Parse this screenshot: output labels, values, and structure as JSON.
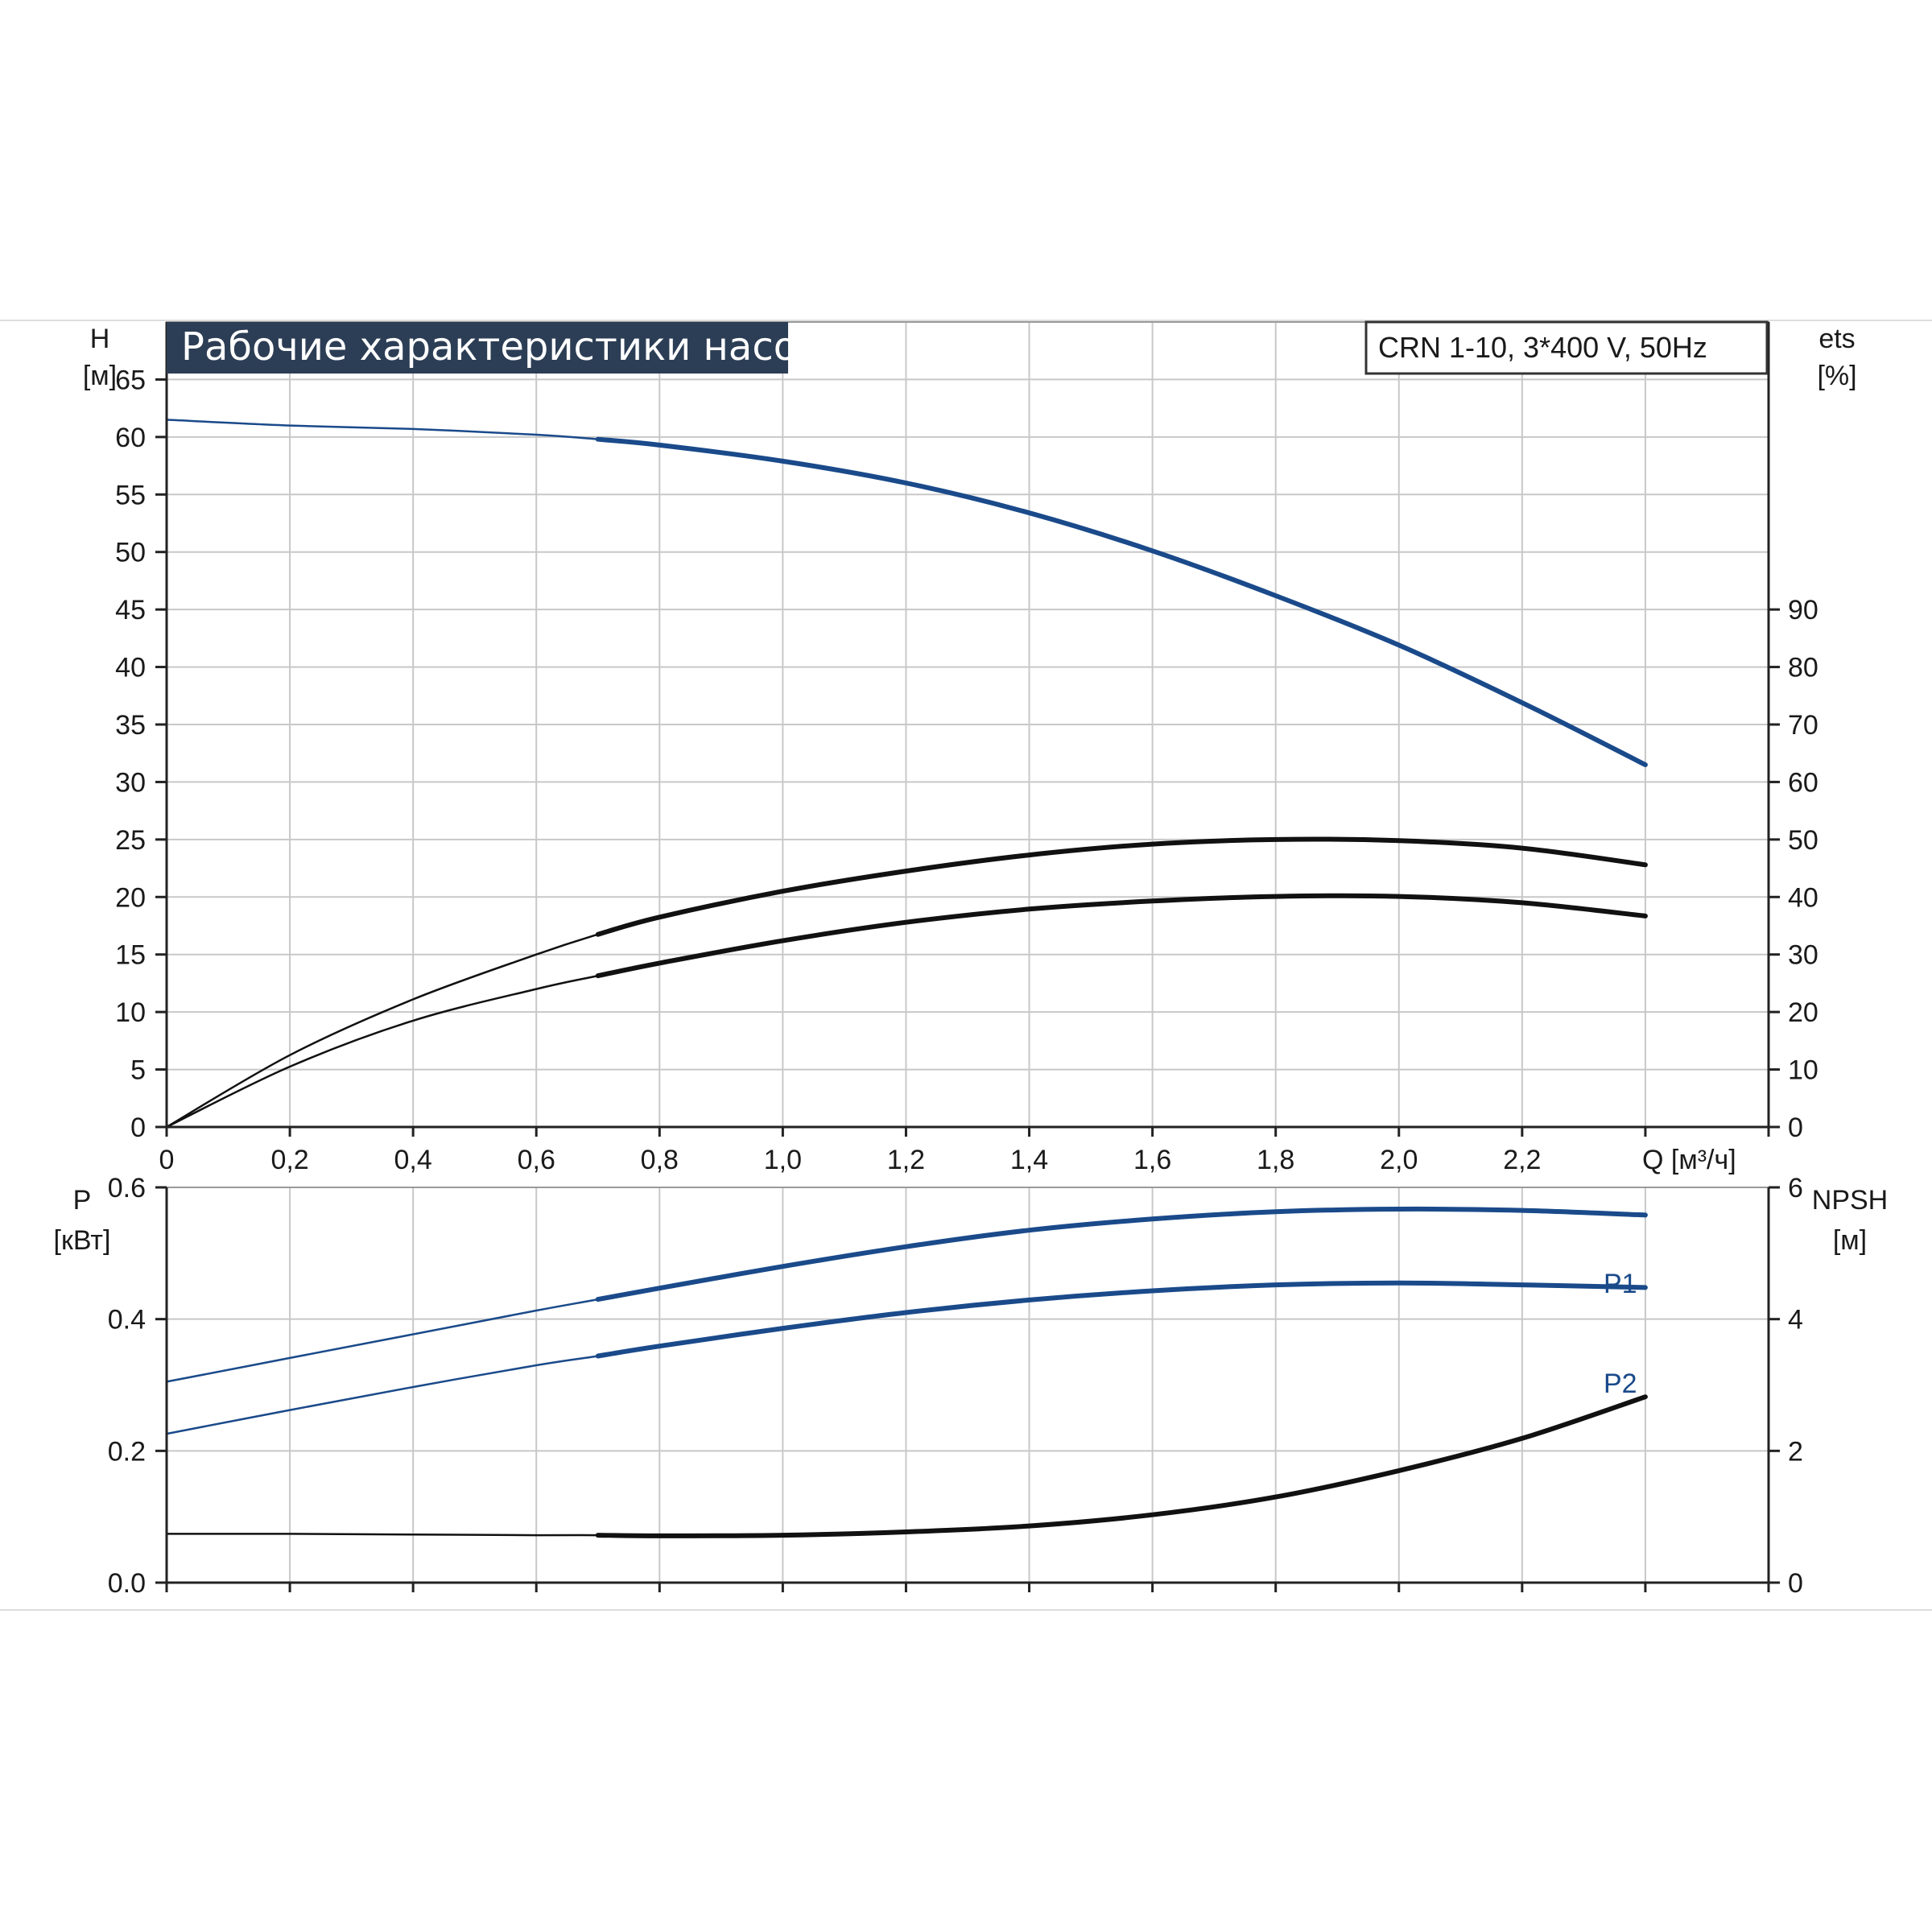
{
  "colors": {
    "blue": "#1a4a8a",
    "black": "#111111",
    "grid": "#c8c8c8",
    "title_bg": "#2c3e55"
  },
  "chart_data": [
    {
      "type": "line",
      "title": "Рабочие характеристики насоса",
      "subtitle": "CRN 1-10, 3*400 V, 50Hz",
      "xlabel": "Q [м³/ч]",
      "x_ticks": [
        "0",
        "0,2",
        "0,4",
        "0,6",
        "0,8",
        "1,0",
        "1,2",
        "1,4",
        "1,6",
        "1,8",
        "2,0",
        "2,2"
      ],
      "xlim": [
        0,
        2.6
      ],
      "ylabel_left": [
        "H",
        "[м]"
      ],
      "ylabel_right": [
        "ets",
        "[%]"
      ],
      "ylim_left": [
        0,
        70
      ],
      "y_ticks_left": [
        "0",
        "5",
        "10",
        "15",
        "20",
        "25",
        "30",
        "35",
        "40",
        "45",
        "50",
        "55",
        "60",
        "65"
      ],
      "ylim_right": [
        0,
        140
      ],
      "y_ticks_right": [
        "0",
        "10",
        "20",
        "30",
        "40",
        "50",
        "60",
        "70",
        "80",
        "90"
      ],
      "grid": true,
      "series": [
        {
          "axis": "left",
          "color": "blue",
          "x": [
            0,
            0.2,
            0.4,
            0.6,
            0.7,
            0.8,
            1.0,
            1.2,
            1.4,
            1.6,
            1.8,
            2.0,
            2.2,
            2.4
          ],
          "values": [
            61.5,
            61.0,
            60.7,
            60.2,
            59.8,
            59.3,
            57.9,
            56.0,
            53.4,
            50.1,
            46.2,
            41.9,
            36.9,
            31.5
          ]
        },
        {
          "axis": "right",
          "color": "black",
          "x": [
            0,
            0.2,
            0.4,
            0.6,
            0.7,
            0.8,
            1.0,
            1.2,
            1.4,
            1.6,
            1.8,
            2.0,
            2.2,
            2.4
          ],
          "values": [
            0,
            12.5,
            22.2,
            30.0,
            33.5,
            36.5,
            41.0,
            44.5,
            47.3,
            49.2,
            50.0,
            49.8,
            48.5,
            45.6
          ]
        },
        {
          "axis": "right",
          "color": "black",
          "x": [
            0,
            0.2,
            0.4,
            0.6,
            0.7,
            0.8,
            1.0,
            1.2,
            1.4,
            1.6,
            1.8,
            2.0,
            2.2,
            2.4
          ],
          "values": [
            0,
            10.5,
            18.5,
            24.0,
            26.3,
            28.5,
            32.4,
            35.6,
            37.9,
            39.3,
            40.1,
            40.1,
            39.0,
            36.7
          ]
        }
      ]
    },
    {
      "type": "line",
      "x_ticks": [
        "0",
        "0,2",
        "0,4",
        "0,6",
        "0,8",
        "1,0",
        "1,2",
        "1,4",
        "1,6",
        "1,8",
        "2,0",
        "2,2"
      ],
      "xlim": [
        0,
        2.6
      ],
      "ylabel_left": [
        "P",
        "[кВт]"
      ],
      "ylabel_right": [
        "NPSH",
        "[м]"
      ],
      "ylim_left": [
        0,
        0.6
      ],
      "y_ticks_left": [
        "0.0",
        "0.2",
        "0.4",
        "0.6"
      ],
      "ylim_right": [
        0,
        6
      ],
      "y_ticks_right": [
        "0",
        "2",
        "4",
        "6"
      ],
      "grid": true,
      "series": [
        {
          "name": "P1",
          "axis": "left",
          "color": "blue",
          "x": [
            0,
            0.2,
            0.4,
            0.6,
            0.7,
            0.8,
            1.0,
            1.2,
            1.4,
            1.6,
            1.8,
            2.0,
            2.2,
            2.4
          ],
          "values": [
            0.305,
            0.341,
            0.377,
            0.413,
            0.43,
            0.447,
            0.48,
            0.51,
            0.535,
            0.552,
            0.563,
            0.567,
            0.565,
            0.558
          ]
        },
        {
          "name": "P2",
          "axis": "left",
          "color": "blue",
          "x": [
            0,
            0.2,
            0.4,
            0.6,
            0.7,
            0.8,
            1.0,
            1.2,
            1.4,
            1.6,
            1.8,
            2.0,
            2.2,
            2.4
          ],
          "values": [
            0.226,
            0.262,
            0.297,
            0.33,
            0.344,
            0.359,
            0.386,
            0.41,
            0.429,
            0.443,
            0.452,
            0.455,
            0.452,
            0.448
          ]
        },
        {
          "axis": "right",
          "color": "black",
          "x": [
            0,
            0.2,
            0.4,
            0.6,
            0.7,
            0.8,
            1.0,
            1.2,
            1.4,
            1.6,
            1.8,
            2.0,
            2.2,
            2.4
          ],
          "values": [
            0.74,
            0.74,
            0.73,
            0.72,
            0.72,
            0.71,
            0.72,
            0.77,
            0.86,
            1.03,
            1.3,
            1.7,
            2.19,
            2.82
          ]
        }
      ]
    }
  ]
}
